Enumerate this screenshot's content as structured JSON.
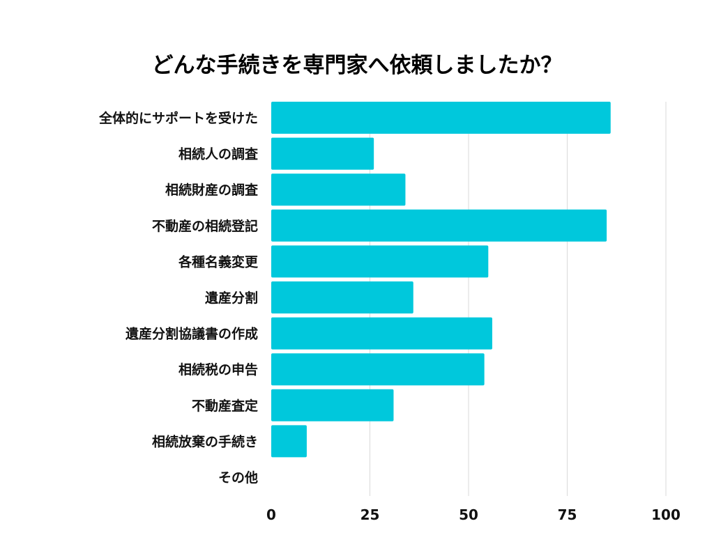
{
  "chart_data": {
    "type": "bar",
    "orientation": "horizontal",
    "title": "どんな手続きを専門家へ依頼しましたか？",
    "xlabel": "",
    "ylabel": "",
    "categories": [
      "全体的にサポートを受けた",
      "相続人の調査",
      "相続財産の調査",
      "不動産の相続登記",
      "各種名義変更",
      "遺産分割",
      "遺産分割協議書の作成",
      "相続税の申告",
      "不動産査定",
      "相続放棄の手続き",
      "その他"
    ],
    "values": [
      86,
      26,
      34,
      85,
      55,
      36,
      56,
      54,
      31,
      9,
      0
    ],
    "xlim": [
      0,
      100
    ],
    "xticks": [
      0,
      25,
      50,
      75,
      100
    ],
    "xtick_labels": [
      "0",
      "25",
      "50",
      "75",
      "100"
    ],
    "grid": "vertical",
    "legend": "none",
    "colors": {
      "bar": "#00c8dc",
      "grid": "#d9d9d9",
      "text": "#111111"
    }
  }
}
